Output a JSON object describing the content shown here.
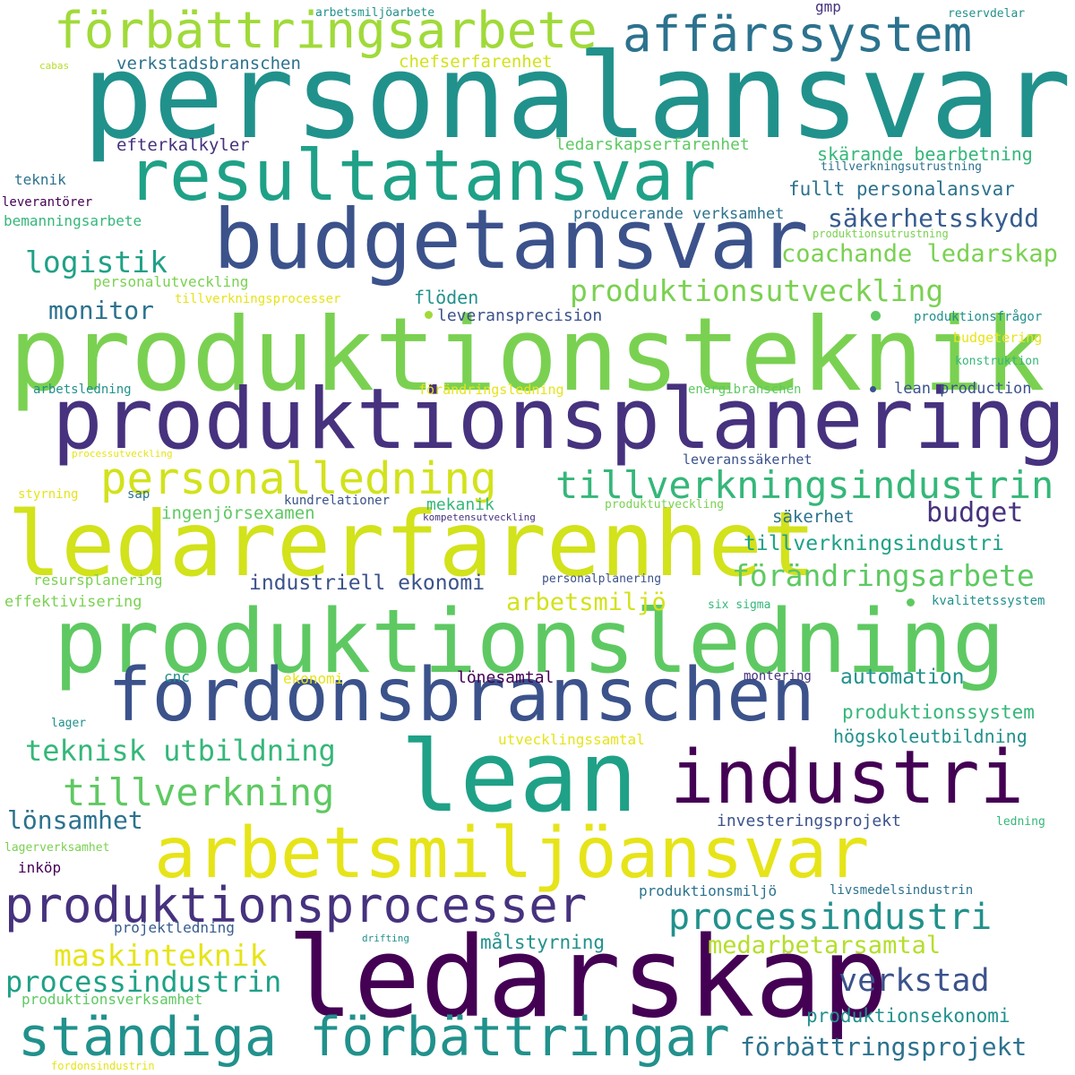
{
  "words": [
    {
      "text": "personalansvar",
      "color": "#21918c"
    },
    {
      "text": "produktionsteknik",
      "color": "#7ad151"
    },
    {
      "text": "produktionsplanering",
      "color": "#46327e"
    },
    {
      "text": "ledarerfarenhet",
      "color": "#d2e21b"
    },
    {
      "text": "produktionsledning",
      "color": "#5ec962"
    },
    {
      "text": "lean",
      "color": "#1fa187"
    },
    {
      "text": "ledarskap",
      "color": "#440154"
    },
    {
      "text": "resultatansvar",
      "color": "#1fa187"
    },
    {
      "text": "budgetansvar",
      "color": "#3b528b"
    },
    {
      "text": "fordonsbranschen",
      "color": "#3b528b"
    },
    {
      "text": "industri",
      "color": "#440154"
    },
    {
      "text": "arbetsmiljöansvar",
      "color": "#e6e419"
    },
    {
      "text": "ständiga förbättringar",
      "color": "#21918c"
    },
    {
      "text": "affärssystem",
      "color": "#2c728e"
    },
    {
      "text": "förbättringsarbete",
      "color": "#a0da39"
    },
    {
      "text": "personalledning",
      "color": "#d2e21b"
    },
    {
      "text": "tillverkningsindustrin",
      "color": "#35b779"
    },
    {
      "text": "produktionsprocesser",
      "color": "#46327e"
    },
    {
      "text": "processindustri",
      "color": "#21918c"
    },
    {
      "text": "tillverkning",
      "color": "#5ec962"
    },
    {
      "text": "teknisk utbildning",
      "color": "#35b779"
    },
    {
      "text": "produktionsutveckling",
      "color": "#7ad151"
    },
    {
      "text": "förändringsarbete",
      "color": "#5ec962"
    },
    {
      "text": "logistik",
      "color": "#1fa187"
    },
    {
      "text": "monitor",
      "color": "#2c728e"
    },
    {
      "text": "budget",
      "color": "#46327e"
    },
    {
      "text": "verkstad",
      "color": "#3b528b"
    },
    {
      "text": "maskinteknik",
      "color": "#e6e419"
    },
    {
      "text": "processindustrin",
      "color": "#1fa187"
    },
    {
      "text": "medarbetarsamtal",
      "color": "#b5de2b"
    },
    {
      "text": "lönsamhet",
      "color": "#2c728e"
    },
    {
      "text": "säkerhetsskydd",
      "color": "#365c8d"
    },
    {
      "text": "coachande ledarskap",
      "color": "#7ad151"
    },
    {
      "text": "förbättringsprojekt",
      "color": "#2c728e"
    },
    {
      "text": "arbetsmiljö",
      "color": "#d2e21b"
    },
    {
      "text": "industriell ekonomi",
      "color": "#3b528b"
    },
    {
      "text": "produktionsekonomi",
      "color": "#21918c"
    },
    {
      "text": "produktionssystem",
      "color": "#35b779"
    },
    {
      "text": "automation",
      "color": "#21918c"
    },
    {
      "text": "tillverkningsindustri",
      "color": "#1fa187"
    },
    {
      "text": "fullt personalansvar",
      "color": "#2c728e"
    },
    {
      "text": "skärande bearbetning",
      "color": "#35b779"
    },
    {
      "text": "högskoleutbildning",
      "color": "#21918c"
    },
    {
      "text": "målstyrning",
      "color": "#21918c"
    },
    {
      "text": "verkstadsbranschen",
      "color": "#2c728e"
    },
    {
      "text": "chefserfarenhet",
      "color": "#d2e21b"
    },
    {
      "text": "efterkalkyler",
      "color": "#46327e"
    },
    {
      "text": "ledarskapserfarenhet",
      "color": "#5ec962"
    },
    {
      "text": "producerande verksamhet",
      "color": "#2c728e"
    },
    {
      "text": "flöden",
      "color": "#21918c"
    },
    {
      "text": "leveransprecision",
      "color": "#3b528b"
    },
    {
      "text": "ingenjörsexamen",
      "color": "#5ec962"
    },
    {
      "text": "mekanik",
      "color": "#35b779"
    },
    {
      "text": "säkerhet",
      "color": "#2c728e"
    },
    {
      "text": "lönesamtal",
      "color": "#440154"
    },
    {
      "text": "investeringsprojekt",
      "color": "#3b528b"
    },
    {
      "text": "produktionsmiljö",
      "color": "#2c728e"
    },
    {
      "text": "projektledning",
      "color": "#365c8d"
    },
    {
      "text": "produktionsverksamhet",
      "color": "#5ec962"
    },
    {
      "text": "utvecklingssamtal",
      "color": "#e6e419"
    },
    {
      "text": "teknik",
      "color": "#2c728e"
    },
    {
      "text": "leverantörer",
      "color": "#440154"
    },
    {
      "text": "bemanningsarbete",
      "color": "#35b779"
    },
    {
      "text": "personalutveckling",
      "color": "#7ad151"
    },
    {
      "text": "tillverkningsprocesser",
      "color": "#e6e419"
    },
    {
      "text": "arbetsledning",
      "color": "#21918c"
    },
    {
      "text": "förändringsledning",
      "color": "#e6e419"
    },
    {
      "text": "energibranschen",
      "color": "#5ec962"
    },
    {
      "text": "lean production",
      "color": "#3b528b"
    },
    {
      "text": "leveranssäkerhet",
      "color": "#3b528b"
    },
    {
      "text": "kundrelationer",
      "color": "#3b528b"
    },
    {
      "text": "kompetensutveckling",
      "color": "#46327e"
    },
    {
      "text": "produktutveckling",
      "color": "#7ad151"
    },
    {
      "text": "personalplanering",
      "color": "#3b528b"
    },
    {
      "text": "resursplanering",
      "color": "#7ad151"
    },
    {
      "text": "effektivisering",
      "color": "#7ad151"
    },
    {
      "text": "six sigma",
      "color": "#35b779"
    },
    {
      "text": "kvalitetssystem",
      "color": "#21918c"
    },
    {
      "text": "cnc",
      "color": "#21918c"
    },
    {
      "text": "ekonomi",
      "color": "#e6e419"
    },
    {
      "text": "montering",
      "color": "#46327e"
    },
    {
      "text": "lager",
      "color": "#21918c"
    },
    {
      "text": "inköp",
      "color": "#440154"
    },
    {
      "text": "lagerverksamhet",
      "color": "#7ad151"
    },
    {
      "text": "livsmedelsindustrin",
      "color": "#2c728e"
    },
    {
      "text": "drifting",
      "color": "#21918c"
    },
    {
      "text": "fordonsindustrin",
      "color": "#e6e419"
    },
    {
      "text": "ledning",
      "color": "#35b779"
    },
    {
      "text": "arbetsmiljöarbete",
      "color": "#21918c"
    },
    {
      "text": "gmp",
      "color": "#46327e"
    },
    {
      "text": "reservdelar",
      "color": "#21918c"
    },
    {
      "text": "cabas",
      "color": "#b5de2b"
    },
    {
      "text": "tillverkningsutrustning",
      "color": "#2c728e"
    },
    {
      "text": "produktionsutrustning",
      "color": "#7ad151"
    },
    {
      "text": "produktionsfrågor",
      "color": "#21918c"
    },
    {
      "text": "budgetering",
      "color": "#e6e419"
    },
    {
      "text": "konstruktion",
      "color": "#35b779"
    },
    {
      "text": "processutveckling",
      "color": "#e6e419"
    },
    {
      "text": "styrning",
      "color": "#e6e419"
    },
    {
      "text": "sap",
      "color": "#2c728e"
    }
  ]
}
